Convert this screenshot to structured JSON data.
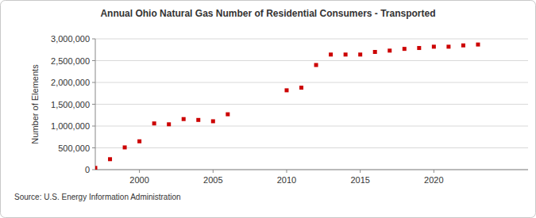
{
  "chart_data": {
    "type": "scatter",
    "title": "Annual Ohio Natural Gas Number of Residential Consumers - Transported",
    "y_label": "Number of Elements",
    "source": "Source: U.S. Energy Information Administration",
    "x": [
      1997,
      1998,
      1999,
      2000,
      2001,
      2002,
      2003,
      2004,
      2005,
      2006,
      2010,
      2011,
      2012,
      2013,
      2014,
      2015,
      2016,
      2017,
      2018,
      2019,
      2020,
      2021,
      2022,
      2023
    ],
    "values": [
      40000,
      240000,
      510000,
      650000,
      1060000,
      1040000,
      1160000,
      1140000,
      1110000,
      1270000,
      1820000,
      1880000,
      2400000,
      2640000,
      2640000,
      2640000,
      2700000,
      2730000,
      2770000,
      2790000,
      2820000,
      2820000,
      2850000,
      2870000
    ],
    "color": "#cc0000",
    "marker": "square",
    "xlim": [
      1997,
      2026.4
    ],
    "xticks": [
      2000,
      2005,
      2010,
      2015,
      2020
    ],
    "ylim": [
      0,
      3000000
    ],
    "yticks": [
      0,
      {
        "value": 500000,
        "label": "500,000"
      },
      {
        "value": 1000000,
        "label": "1,000,000"
      },
      {
        "value": 1500000,
        "label": "1,500,000"
      },
      {
        "value": 2000000,
        "label": "2,000,000"
      },
      {
        "value": 2500000,
        "label": "2,500,000"
      },
      {
        "value": 3000000,
        "label": "3,000,000"
      }
    ],
    "grid": true
  }
}
